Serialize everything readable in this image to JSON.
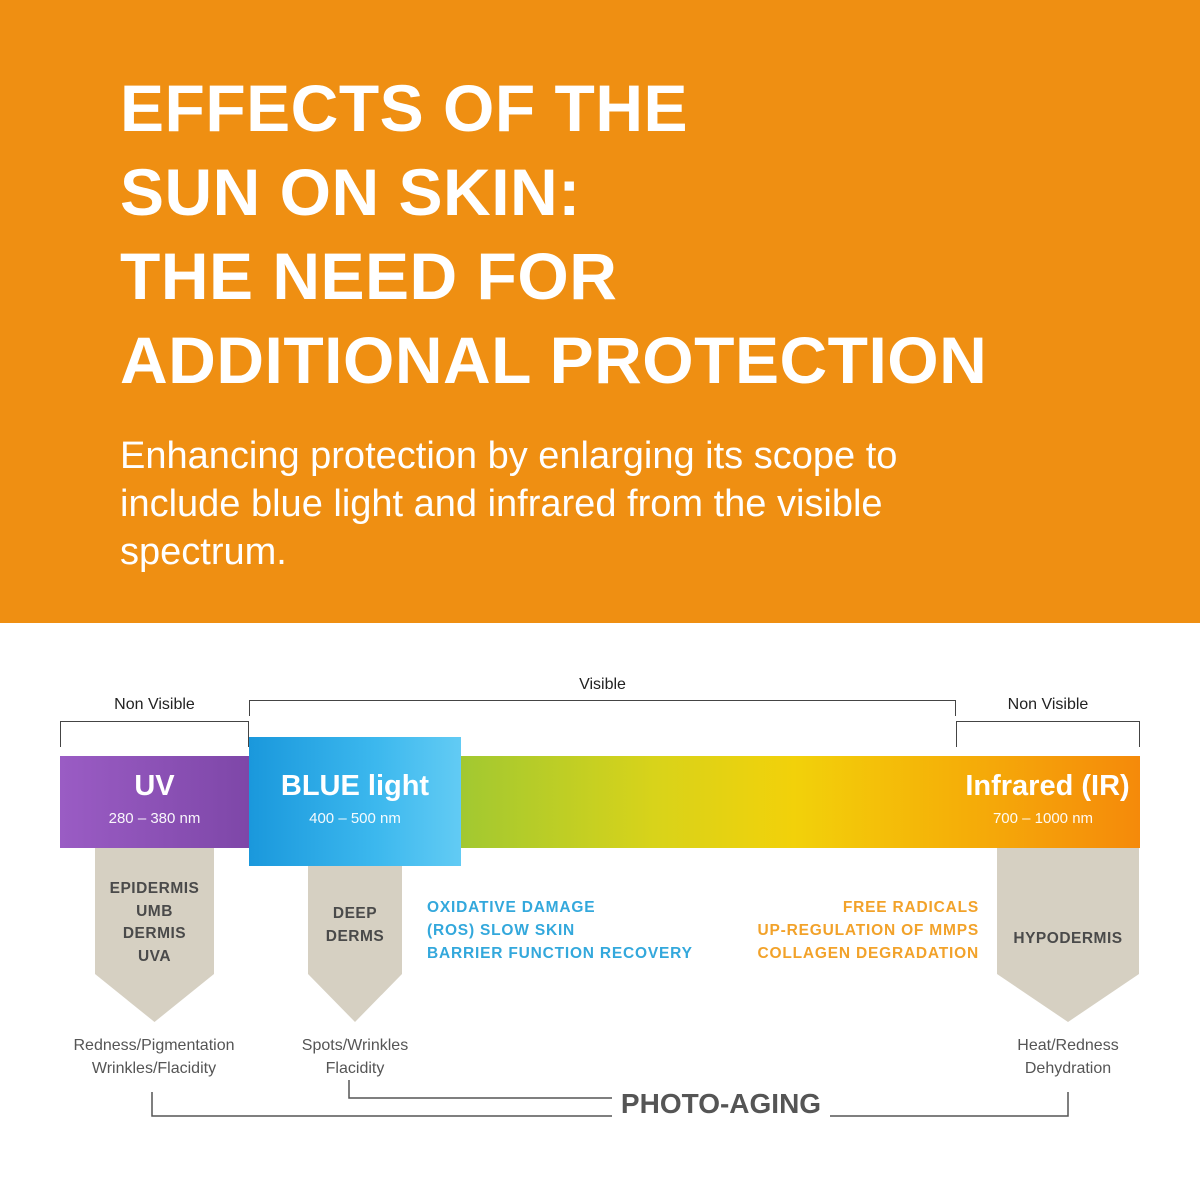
{
  "title_lines": [
    "EFFECTS OF THE",
    "SUN ON SKIN:",
    "THE NEED FOR",
    "ADDITIONAL PROTECTION"
  ],
  "subtitle_lines": [
    "Enhancing protection by enlarging its scope to",
    "include blue light and infrared from the visible",
    "spectrum."
  ],
  "colors": {
    "header_bg": "#ef8f12",
    "uv": "#8a4fb6",
    "blue": "#2aaee6",
    "infrared": "#f58a0a",
    "blue_text": "#33a8dc",
    "orange_text": "#f2a22a",
    "arrow_fill": "#d6d0c2"
  },
  "spectrum": {
    "non_visible_left": "Non Visible",
    "visible": "Visible",
    "non_visible_right": "Non Visible",
    "uv": {
      "name": "UV",
      "range": "280 – 380 nm"
    },
    "blue": {
      "name": "BLUE light",
      "range": "400 – 500 nm"
    },
    "infrared": {
      "name": "Infrared (IR)",
      "range": "700 – 1000 nm"
    }
  },
  "penetration": {
    "uv": [
      "EPIDERMIS",
      "UMB",
      "DERMIS",
      "UVA"
    ],
    "blue": [
      "DEEP",
      "DERMS"
    ],
    "infrared": [
      "HYPODERMIS"
    ]
  },
  "blue_effects": [
    "OXIDATIVE DAMAGE",
    "(ROS) SLOW SKIN",
    "BARRIER FUNCTION RECOVERY"
  ],
  "ir_effects": [
    "FREE RADICALS",
    "UP-REGULATION OF MMPS",
    "COLLAGEN DEGRADATION"
  ],
  "results": {
    "uv": [
      "Redness/Pigmentation",
      "Wrinkles/Flacidity"
    ],
    "blue": [
      "Spots/Wrinkles",
      "Flacidity"
    ],
    "infrared": [
      "Heat/Redness",
      "Dehydration"
    ]
  },
  "photo_aging": "PHOTO-AGING"
}
